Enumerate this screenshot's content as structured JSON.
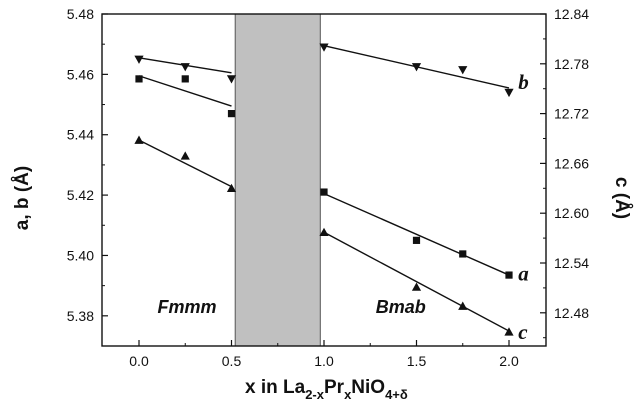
{
  "chart_data": {
    "type": "scatter",
    "xlabel": {
      "main": "x in La",
      "s1": "2-x",
      "m2": "Pr",
      "s2": "x",
      "m3": "NiO",
      "s3": "4+δ"
    },
    "ylabel_left": "a, b (Å)",
    "ylabel_right": "c (Å)",
    "xlim": [
      -0.2,
      2.2
    ],
    "ylim_left": [
      5.37,
      5.48
    ],
    "ylim_right": [
      12.44,
      12.84
    ],
    "x_ticks": [
      "0.0",
      "0.5",
      "1.0",
      "1.5",
      "2.0"
    ],
    "x_tick_values": [
      0.0,
      0.5,
      1.0,
      1.5,
      2.0
    ],
    "y_left_ticks": [
      "5.38",
      "5.40",
      "5.42",
      "5.44",
      "5.46",
      "5.48"
    ],
    "y_left_tick_values": [
      5.38,
      5.4,
      5.42,
      5.44,
      5.46,
      5.48
    ],
    "y_right_ticks": [
      "12.48",
      "12.54",
      "12.60",
      "12.66",
      "12.72",
      "12.78",
      "12.84"
    ],
    "y_right_tick_values": [
      12.48,
      12.54,
      12.6,
      12.66,
      12.72,
      12.78,
      12.84
    ],
    "shaded_region": {
      "x_from": 0.52,
      "x_to": 0.98,
      "color": "#c0c0c0"
    },
    "phase_labels": [
      {
        "text": "Fmmm",
        "x": 0.1,
        "y_left": 5.381
      },
      {
        "text": "Bmab",
        "x": 1.28,
        "y_left": 5.381
      }
    ],
    "series": [
      {
        "name": "b",
        "axis": "left",
        "marker": "triangle-down",
        "points": [
          [
            0.0,
            5.465
          ],
          [
            0.25,
            5.4625
          ],
          [
            0.5,
            5.4585
          ],
          [
            1.0,
            5.469
          ],
          [
            1.5,
            5.4625
          ],
          [
            1.75,
            5.4615
          ],
          [
            2.0,
            5.454
          ]
        ],
        "fits": [
          [
            [
              0.0,
              5.4655
            ],
            [
              0.5,
              5.4605
            ]
          ],
          [
            [
              1.0,
              5.4695
            ],
            [
              2.0,
              5.4555
            ]
          ]
        ],
        "label_pos": [
          2.05,
          5.4575
        ]
      },
      {
        "name": "a",
        "axis": "left",
        "marker": "square",
        "points": [
          [
            0.0,
            5.4585
          ],
          [
            0.25,
            5.4585
          ],
          [
            0.5,
            5.447
          ],
          [
            1.0,
            5.421
          ],
          [
            1.5,
            5.405
          ],
          [
            1.75,
            5.4005
          ],
          [
            2.0,
            5.3935
          ]
        ],
        "fits": [
          [
            [
              0.0,
              5.4595
            ],
            [
              0.5,
              5.4495
            ]
          ],
          [
            [
              1.0,
              5.4205
            ],
            [
              2.0,
              5.3935
            ]
          ]
        ],
        "label_pos": [
          2.05,
          5.394
        ]
      },
      {
        "name": "c",
        "axis": "right",
        "marker": "triangle-up",
        "points": [
          [
            0.0,
            12.688
          ],
          [
            0.25,
            12.669
          ],
          [
            0.5,
            12.63
          ],
          [
            1.0,
            12.577
          ],
          [
            1.5,
            12.511
          ],
          [
            1.75,
            12.488
          ],
          [
            2.0,
            12.457
          ]
        ],
        "fits": [
          [
            [
              0.0,
              12.688
            ],
            [
              0.5,
              12.632
            ]
          ],
          [
            [
              1.0,
              12.577
            ],
            [
              2.0,
              12.458
            ]
          ]
        ],
        "label_pos": [
          2.05,
          12.457
        ]
      }
    ]
  }
}
